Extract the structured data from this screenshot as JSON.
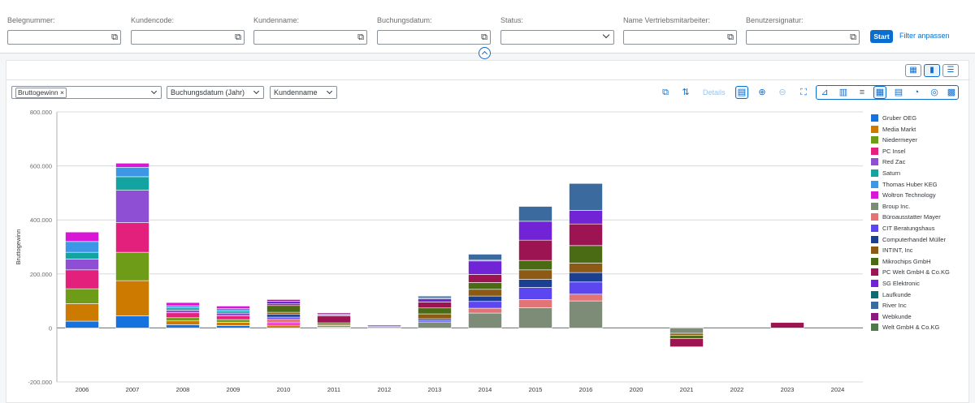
{
  "filters": [
    {
      "label": "Belegnummer:",
      "value": "",
      "type": "valuehelp"
    },
    {
      "label": "Kundencode:",
      "value": "",
      "type": "valuehelp"
    },
    {
      "label": "Kundenname:",
      "value": "",
      "type": "valuehelp"
    },
    {
      "label": "Buchungsdatum:",
      "value": "",
      "type": "valuehelp"
    },
    {
      "label": "Status:",
      "value": "",
      "type": "select"
    },
    {
      "label": "Name Vertriebsmitarbeiter:",
      "value": "",
      "type": "valuehelp"
    },
    {
      "label": "Benutzersignatur:",
      "value": "",
      "type": "valuehelp"
    }
  ],
  "actions": {
    "start": "Start",
    "adapt": "Filter anpassen"
  },
  "toolbar": {
    "measure_token": "Bruttogewinn",
    "dimension1": "Buchungsdatum (Jahr)",
    "dimension2": "Kundenname",
    "details": "Details"
  },
  "chart_data": {
    "type": "bar",
    "stacked": true,
    "ylabel": "Bruttogewinn",
    "xlabel": "",
    "ylim": [
      -200000,
      800000
    ],
    "yticks": [
      {
        "value": 800000,
        "label": "800.000"
      },
      {
        "value": 600000,
        "label": "600.000"
      },
      {
        "value": 400000,
        "label": "400.000"
      },
      {
        "value": 200000,
        "label": "200.000"
      },
      {
        "value": 0,
        "label": "0"
      },
      {
        "value": -200000,
        "label": "-200.000"
      }
    ],
    "categories": [
      "2006",
      "2007",
      "2008",
      "2009",
      "2010",
      "2011",
      "2012",
      "2013",
      "2014",
      "2015",
      "2016",
      "2020",
      "2021",
      "2022",
      "2023",
      "2024"
    ],
    "series": [
      {
        "name": "Gruber OEG",
        "color": "#1672df",
        "values": [
          25000,
          45000,
          12000,
          9000,
          0,
          0,
          0,
          0,
          0,
          0,
          0,
          0,
          0,
          0,
          0,
          0
        ]
      },
      {
        "name": "Media Markt",
        "color": "#cc7a00",
        "values": [
          65000,
          130000,
          14000,
          12000,
          8000,
          3000,
          0,
          0,
          0,
          0,
          0,
          0,
          0,
          0,
          0,
          0
        ]
      },
      {
        "name": "Niedermeyer",
        "color": "#6e9b18",
        "values": [
          55000,
          105000,
          12000,
          10000,
          0,
          0,
          0,
          0,
          0,
          0,
          0,
          0,
          0,
          0,
          0,
          0
        ]
      },
      {
        "name": "PC Insel",
        "color": "#e3217c",
        "values": [
          70000,
          110000,
          18000,
          14000,
          6000,
          0,
          0,
          0,
          0,
          0,
          0,
          0,
          0,
          0,
          0,
          0
        ]
      },
      {
        "name": "Red Zac",
        "color": "#8e4fd4",
        "values": [
          40000,
          120000,
          10000,
          10000,
          0,
          0,
          0,
          0,
          0,
          0,
          0,
          0,
          0,
          0,
          0,
          0
        ]
      },
      {
        "name": "Saturn",
        "color": "#13a3a1",
        "values": [
          25000,
          50000,
          8000,
          8000,
          0,
          0,
          0,
          0,
          0,
          0,
          0,
          0,
          0,
          0,
          0,
          0
        ]
      },
      {
        "name": "Thomas Huber KEG",
        "color": "#3d96e6",
        "values": [
          40000,
          35000,
          8000,
          8000,
          0,
          0,
          0,
          0,
          0,
          0,
          0,
          0,
          0,
          0,
          0,
          0
        ]
      },
      {
        "name": "Woltron Technology",
        "color": "#d816d6",
        "values": [
          35000,
          15000,
          12000,
          10000,
          6000,
          0,
          0,
          0,
          0,
          0,
          0,
          0,
          0,
          0,
          0,
          0
        ]
      },
      {
        "name": "Broup Inc.",
        "color": "#7d8c77",
        "values": [
          0,
          0,
          0,
          0,
          0,
          6000,
          4000,
          22000,
          55000,
          75000,
          100000,
          0,
          -20000,
          0,
          0,
          0
        ]
      },
      {
        "name": "Büroausstatter Mayer",
        "color": "#e27476",
        "values": [
          0,
          0,
          0,
          0,
          12000,
          0,
          0,
          0,
          18000,
          30000,
          25000,
          0,
          0,
          0,
          0,
          0
        ]
      },
      {
        "name": "CIT Beratungshaus",
        "color": "#5b46f0",
        "values": [
          0,
          0,
          0,
          0,
          8000,
          0,
          0,
          6000,
          25000,
          45000,
          45000,
          0,
          0,
          0,
          0,
          0
        ]
      },
      {
        "name": "Computerhandel Müller",
        "color": "#1b3f91",
        "values": [
          0,
          0,
          0,
          0,
          10000,
          0,
          0,
          6000,
          20000,
          30000,
          35000,
          0,
          0,
          0,
          0,
          0
        ]
      },
      {
        "name": "INTINT, Inc",
        "color": "#8c5a14",
        "values": [
          0,
          0,
          0,
          0,
          8000,
          4000,
          0,
          18000,
          25000,
          35000,
          35000,
          0,
          -8000,
          0,
          0,
          0
        ]
      },
      {
        "name": "Mikrochips GmbH",
        "color": "#4a6b13",
        "values": [
          0,
          0,
          0,
          0,
          25000,
          6000,
          0,
          22000,
          25000,
          35000,
          65000,
          0,
          -12000,
          0,
          0,
          0
        ]
      },
      {
        "name": "PC Welt GmbH & Co.KG",
        "color": "#9c1451",
        "values": [
          0,
          0,
          0,
          0,
          6000,
          25000,
          0,
          22000,
          30000,
          75000,
          80000,
          0,
          -30000,
          0,
          20000,
          0
        ]
      },
      {
        "name": "SG Elektronic",
        "color": "#7024d6",
        "values": [
          0,
          0,
          0,
          0,
          10000,
          4000,
          3000,
          12000,
          50000,
          70000,
          50000,
          0,
          0,
          0,
          0,
          0
        ]
      },
      {
        "name": "Laufkunde",
        "color": "#0b6e6e",
        "values": [
          0,
          0,
          0,
          0,
          0,
          0,
          0,
          4000,
          3000,
          0,
          0,
          0,
          0,
          0,
          0,
          0
        ]
      },
      {
        "name": "River Inc",
        "color": "#3b6b9e",
        "values": [
          0,
          0,
          0,
          0,
          0,
          4000,
          4000,
          6000,
          22000,
          55000,
          100000,
          0,
          0,
          0,
          0,
          0
        ]
      },
      {
        "name": "Webkunde",
        "color": "#8c1a7e",
        "values": [
          0,
          0,
          0,
          0,
          6000,
          4000,
          0,
          0,
          0,
          0,
          0,
          0,
          0,
          0,
          0,
          0
        ]
      },
      {
        "name": "Welt GmbH & Co.KG",
        "color": "#4e7a4b",
        "values": [
          0,
          0,
          0,
          0,
          0,
          0,
          0,
          0,
          0,
          0,
          0,
          0,
          0,
          0,
          0,
          0
        ]
      }
    ]
  }
}
